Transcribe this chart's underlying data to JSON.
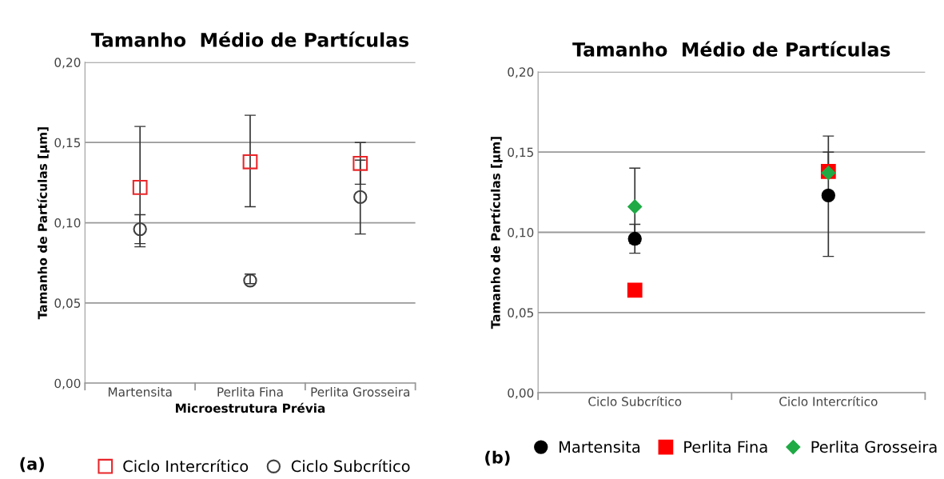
{
  "chart_data": [
    {
      "type": "scatter",
      "title": "Tamanho  Médio de Partículas",
      "xlabel": "Microestrutura Prévia",
      "ylabel": "Tamanho de Partículas [µm]",
      "categories": [
        "Martensita",
        "Perlita Fina",
        "Perlita Grosseira"
      ],
      "series": [
        {
          "name": "Ciclo Intercrítico",
          "color": "#e8262a",
          "marker": "square",
          "values": [
            0.122,
            0.138,
            0.137
          ],
          "errors": [
            [
              0.085,
              0.16
            ],
            [
              0.11,
              0.167
            ],
            [
              0.124,
              0.15
            ]
          ]
        },
        {
          "name": "Ciclo Subcrítico",
          "color": "#404040",
          "marker": "circle",
          "values": [
            0.096,
            0.064,
            0.116
          ],
          "errors": [
            [
              0.087,
              0.105
            ],
            [
              0.062,
              0.068
            ],
            [
              0.093,
              0.139
            ]
          ]
        }
      ],
      "ylim": [
        0,
        0.2
      ],
      "yticks": [
        {
          "value": 0,
          "label": "0,00"
        },
        {
          "value": 0.05,
          "label": "0,05"
        },
        {
          "value": 0.1,
          "label": "0,10"
        },
        {
          "value": 0.15,
          "label": "0,15"
        },
        {
          "value": 0.2,
          "label": "0,20"
        }
      ],
      "grid": "y",
      "legend": "bottom",
      "annotations": [
        "(a)"
      ]
    },
    {
      "type": "scatter",
      "title": "Tamanho  Médio de Partículas",
      "ylabel": "Tamanho de Partículas [µm]",
      "categories": [
        "Ciclo Subcrítico",
        "Ciclo Intercrítico"
      ],
      "series": [
        {
          "name": "Martensita",
          "color": "#000000",
          "marker": "circle",
          "values": [
            0.096,
            0.123
          ],
          "errors": [
            [
              0.087,
              0.105
            ],
            [
              0.085,
              0.16
            ]
          ]
        },
        {
          "name": "Perlita Fina",
          "color": "#ff0000",
          "marker": "square",
          "values": [
            0.064,
            0.138
          ]
        },
        {
          "name": "Perlita Grosseira",
          "color": "#1faa45",
          "marker": "diamond",
          "values": [
            0.116,
            0.137
          ],
          "errors": [
            [
              0.093,
              0.14
            ],
            [
              0.137,
              0.15
            ]
          ]
        }
      ],
      "ylim": [
        0,
        0.2
      ],
      "yticks": [
        {
          "value": 0,
          "label": "0,00"
        },
        {
          "value": 0.05,
          "label": "0,05"
        },
        {
          "value": 0.1,
          "label": "0,10"
        },
        {
          "value": 0.15,
          "label": "0,15"
        },
        {
          "value": 0.2,
          "label": "0,20"
        }
      ],
      "grid": "y",
      "legend": "bottom",
      "annotations": [
        "(b)"
      ]
    }
  ]
}
